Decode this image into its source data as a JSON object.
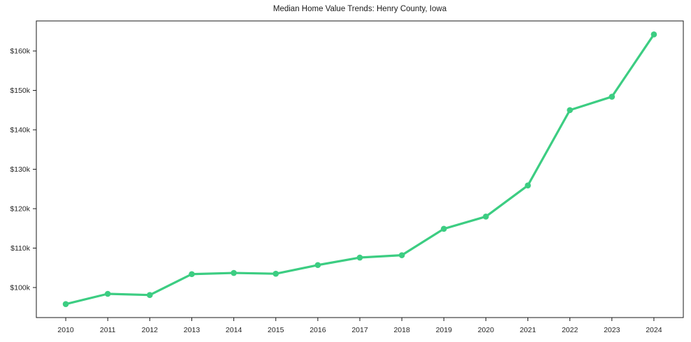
{
  "chart_data": {
    "type": "line",
    "title": "Median Home Value Trends: Henry County, Iowa",
    "xlabel": "",
    "ylabel": "",
    "x": [
      2010,
      2011,
      2012,
      2013,
      2014,
      2015,
      2016,
      2017,
      2018,
      2019,
      2020,
      2021,
      2022,
      2023,
      2024
    ],
    "xtick_labels": [
      "2010",
      "2011",
      "2012",
      "2013",
      "2014",
      "2015",
      "2016",
      "2017",
      "2018",
      "2019",
      "2020",
      "2021",
      "2022",
      "2023",
      "2024"
    ],
    "series": [
      {
        "name": "Median home value",
        "values": [
          95800,
          98400,
          98100,
          103400,
          103700,
          103500,
          105700,
          107600,
          108200,
          114900,
          118000,
          125900,
          145000,
          148400,
          164200
        ],
        "color": "#3ccd82"
      }
    ],
    "ytick_values": [
      100000,
      110000,
      120000,
      130000,
      140000,
      150000,
      160000
    ],
    "ytick_labels": [
      "$100k",
      "$110k",
      "$120k",
      "$130k",
      "$140k",
      "$150k",
      "$160k"
    ],
    "xlim": [
      2009.3,
      2024.7
    ],
    "ylim": [
      92380,
      167620
    ],
    "grid": false,
    "legend": "none",
    "marker": "circle",
    "axis_color": "#1a1a1a",
    "text_color": "#262626",
    "background": "#ffffff"
  }
}
